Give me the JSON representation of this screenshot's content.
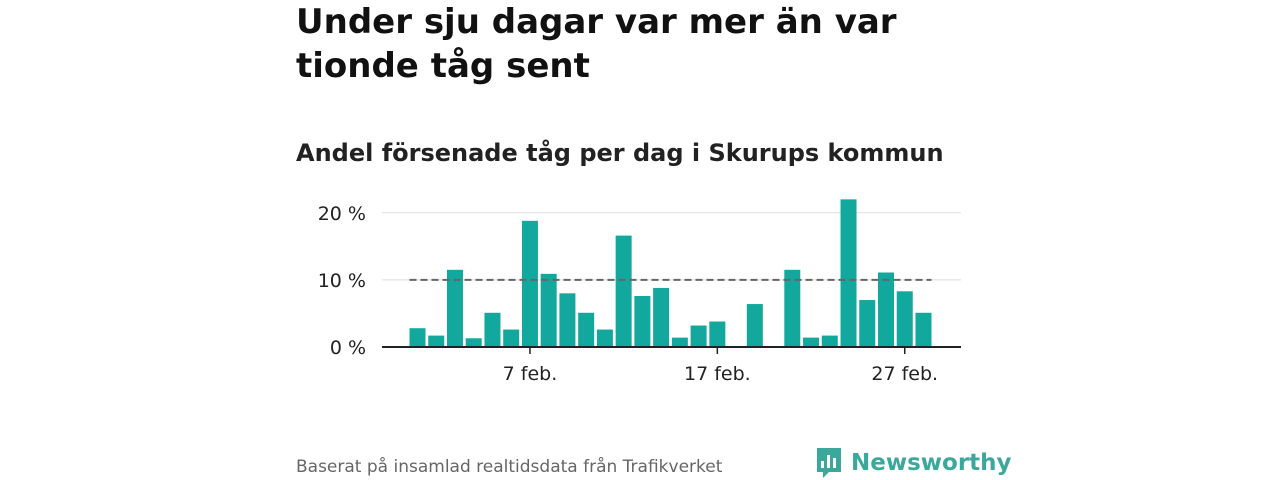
{
  "header": {
    "title": "Under sju dagar var mer än var tionde tåg sent",
    "subtitle": "Andel försenade tåg per dag i Skurups kommun"
  },
  "footer": {
    "source": "Baserat på insamlad realtidsdata från Trafikverket",
    "brand": "Newsworthy"
  },
  "colors": {
    "bar": "#13a89e",
    "brand": "#3aa89a",
    "reference_line": "#666666",
    "grid": "#dddddd"
  },
  "chart_data": {
    "type": "bar",
    "x": [
      "2023-02-01",
      "2023-02-02",
      "2023-02-03",
      "2023-02-04",
      "2023-02-05",
      "2023-02-06",
      "2023-02-07",
      "2023-02-08",
      "2023-02-09",
      "2023-02-10",
      "2023-02-11",
      "2023-02-12",
      "2023-02-13",
      "2023-02-14",
      "2023-02-15",
      "2023-02-16",
      "2023-02-17",
      "2023-02-18",
      "2023-02-19",
      "2023-02-20",
      "2023-02-21",
      "2023-02-22",
      "2023-02-23",
      "2023-02-24",
      "2023-02-25",
      "2023-02-26",
      "2023-02-27",
      "2023-02-28"
    ],
    "values": [
      2.8,
      1.7,
      11.5,
      1.3,
      5.1,
      2.6,
      18.8,
      10.9,
      8.0,
      5.1,
      2.6,
      16.6,
      7.6,
      8.8,
      1.4,
      3.2,
      3.8,
      0,
      6.4,
      0,
      11.5,
      1.4,
      1.7,
      22.0,
      7.0,
      11.1,
      8.3,
      5.1
    ],
    "reference_line": 10,
    "ylim": [
      0,
      22.5
    ],
    "yticks": [
      0,
      10,
      20
    ],
    "ytick_labels": [
      "0 %",
      "10 %",
      "20 %"
    ],
    "xticks": [
      "2023-02-07",
      "2023-02-17",
      "2023-02-27"
    ],
    "xtick_labels": [
      "7 feb.",
      "17 feb.",
      "27 feb."
    ],
    "grid": "horizontal",
    "xlabel": "",
    "ylabel": ""
  }
}
